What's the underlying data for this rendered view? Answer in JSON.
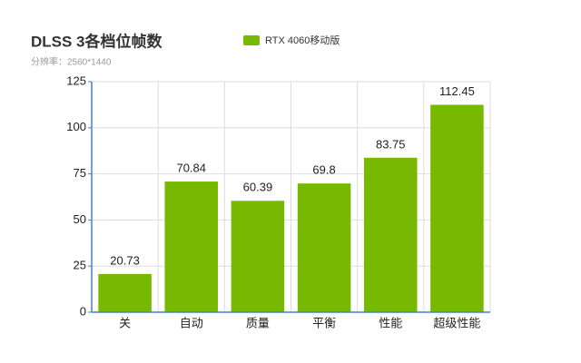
{
  "chart_data": {
    "type": "bar",
    "title": "DLSS 3各档位帧数",
    "subtitle": "分辨率：2560*1440",
    "categories": [
      "关",
      "自动",
      "质量",
      "平衡",
      "性能",
      "超级性能"
    ],
    "series": [
      {
        "name": "RTX 4060移动版",
        "color": "#77b800",
        "values": [
          20.73,
          70.84,
          60.39,
          69.8,
          83.75,
          112.45
        ]
      }
    ],
    "ylim": [
      0,
      125
    ],
    "yticks": [
      0,
      25,
      50,
      75,
      100,
      125
    ],
    "grid": true
  }
}
